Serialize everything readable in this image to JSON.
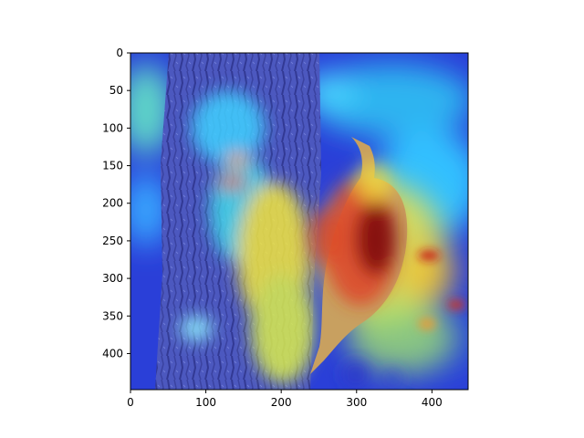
{
  "image": {
    "subject": "brown creeper bird clinging to tree bark",
    "overlay": "attention heatmap (jet colormap)"
  },
  "axes": {
    "x_ticks": [
      "0",
      "100",
      "200",
      "300",
      "400"
    ],
    "y_ticks": [
      "0",
      "50",
      "100",
      "150",
      "200",
      "250",
      "300",
      "350",
      "400"
    ],
    "x_range": [
      0,
      448
    ],
    "y_range": [
      0,
      448
    ],
    "y_inverted": true
  },
  "colors": {
    "low": "#1f2fd6",
    "mid_low": "#33c9ff",
    "mid": "#f5f040",
    "high": "#e0281c",
    "peak": "#7a0010"
  }
}
